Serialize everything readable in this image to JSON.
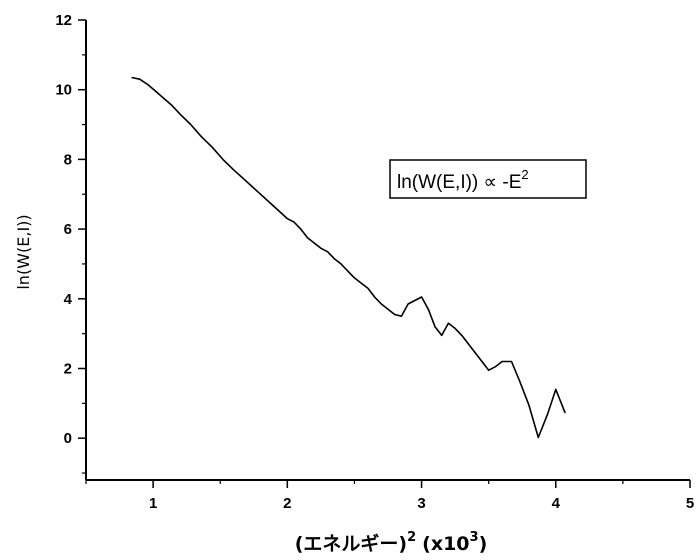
{
  "chart_data": {
    "type": "line",
    "title": "",
    "xlabel": "(エネルギー)",
    "xlabel_power": "2",
    "xlabel_scale": "(x10",
    "xlabel_scale_power": "3",
    "xlabel_close": ")",
    "ylabel": "ln(W(E,I))",
    "xlim": [
      0.5,
      5
    ],
    "ylim": [
      -1.2,
      12
    ],
    "xticks": [
      1,
      2,
      3,
      4,
      5
    ],
    "yticks": [
      0,
      2,
      4,
      6,
      8,
      10,
      12
    ],
    "grid": false,
    "annotation": {
      "text": "ln(W(E,I)) ∝ -E",
      "superscript": "2"
    },
    "series": [
      {
        "x": [
          0.84,
          0.9,
          0.96,
          1.02,
          1.08,
          1.14,
          1.2,
          1.28,
          1.36,
          1.44,
          1.52,
          1.6,
          1.7,
          1.8,
          1.9,
          2.0,
          2.05,
          2.1,
          2.15,
          2.2,
          2.25,
          2.3,
          2.35,
          2.4,
          2.45,
          2.5,
          2.55,
          2.6,
          2.65,
          2.7,
          2.75,
          2.8,
          2.85,
          2.9,
          2.95,
          3.0,
          3.05,
          3.1,
          3.15,
          3.2,
          3.25,
          3.3,
          3.4,
          3.5,
          3.55,
          3.6,
          3.67,
          3.73,
          3.8,
          3.87,
          3.94,
          4.0,
          4.07
        ],
        "y": [
          10.35,
          10.3,
          10.15,
          9.95,
          9.75,
          9.55,
          9.3,
          9.0,
          8.65,
          8.35,
          8.0,
          7.7,
          7.35,
          7.0,
          6.65,
          6.3,
          6.2,
          6.0,
          5.75,
          5.6,
          5.45,
          5.35,
          5.15,
          5.0,
          4.8,
          4.6,
          4.45,
          4.3,
          4.05,
          3.85,
          3.7,
          3.55,
          3.5,
          3.85,
          3.95,
          4.05,
          3.7,
          3.2,
          2.95,
          3.3,
          3.15,
          2.95,
          2.45,
          1.95,
          2.05,
          2.2,
          2.2,
          1.65,
          0.95,
          0.02,
          0.7,
          1.4,
          0.72
        ]
      }
    ]
  }
}
